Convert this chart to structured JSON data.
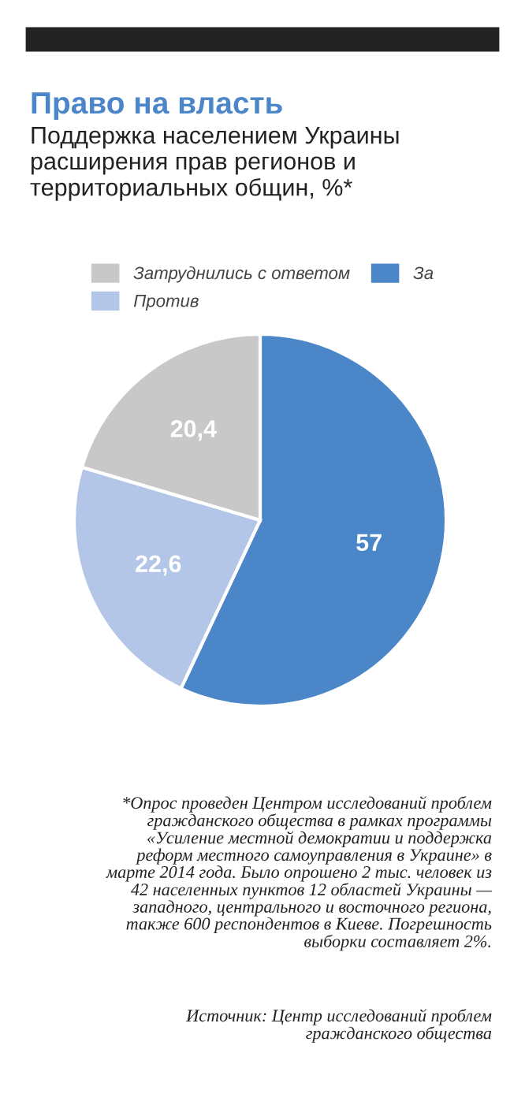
{
  "chart_data": {
    "type": "pie",
    "title": "Право на власть",
    "subtitle": "Поддержка населением Украины\nрасширения прав регионов и\nтерриториальных общин, %*",
    "categories": [
      "За",
      "Против",
      "Затруднились с ответом"
    ],
    "values": [
      57,
      22.6,
      20.4
    ],
    "colors": [
      "#4a86c8",
      "#b4c6e7",
      "#c8c8c8"
    ],
    "value_labels": [
      "57",
      "22,6",
      "20,4"
    ],
    "legend": "top",
    "annotations": [
      "*Опрос проведен Центром исследований проблем\nгражданского общества в рамках программы\n«Усиление местной демократии и поддержка\nреформ местного самоуправления в Украине» в\nмарте 2014 года. Было опрошено 2 тыс. человек из\n42 населенных пунктов 12 областей Украины —\nзападного, центрального и восточного региона,\nтакже 600 респондентов в Киеве. Погрешность\nвыборки составляет 2%.",
      "Источник: Центр исследований проблем\nгражданского общества"
    ]
  }
}
